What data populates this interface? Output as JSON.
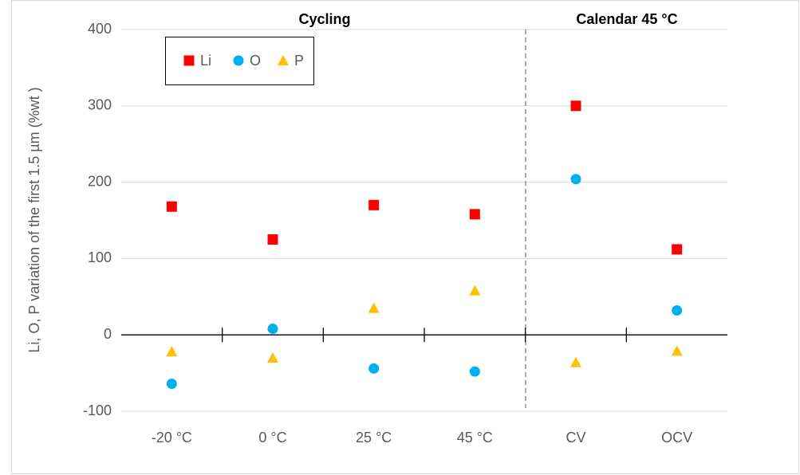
{
  "chart_data": {
    "type": "scatter",
    "y_label": "Li, O, P  variation of the first  1.5 µm (%wt )",
    "annotations": [
      "Cycling",
      "Calendar 45 °C"
    ],
    "categories": [
      "-20 °C",
      "0 °C",
      "25 °C",
      "45 °C",
      "CV",
      "OCV"
    ],
    "series": [
      {
        "name": "Li",
        "color": "#ff0000",
        "marker": "square",
        "values": [
          168,
          125,
          170,
          158,
          300,
          112
        ]
      },
      {
        "name": "O",
        "color": "#00b0f0",
        "marker": "circle",
        "values": [
          -64,
          8,
          -44,
          -48,
          204,
          32
        ]
      },
      {
        "name": "P",
        "color": "#ffc000",
        "marker": "triangle",
        "values": [
          -22,
          -30,
          35,
          58,
          -36,
          -21
        ]
      }
    ],
    "ylim": [
      -100,
      400
    ],
    "yticks": [
      -100,
      0,
      100,
      200,
      300,
      400
    ],
    "grid": true
  }
}
